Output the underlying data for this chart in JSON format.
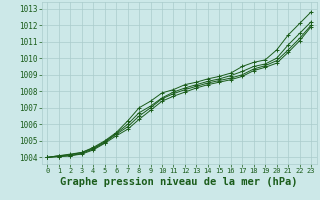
{
  "bg_color": "#cce8e8",
  "grid_color": "#aacccc",
  "line_color": "#1a5c1a",
  "marker": "+",
  "xlabel": "Graphe pression niveau de la mer (hPa)",
  "xlabel_fontsize": 7.5,
  "xlabel_color": "#1a5c1a",
  "ylabel_ticks": [
    1004,
    1005,
    1006,
    1007,
    1008,
    1009,
    1010,
    1011,
    1012,
    1013
  ],
  "xlim": [
    -0.5,
    23.5
  ],
  "ylim": [
    1003.6,
    1013.4
  ],
  "xticks": [
    0,
    1,
    2,
    3,
    4,
    5,
    6,
    7,
    8,
    9,
    10,
    11,
    12,
    13,
    14,
    15,
    16,
    17,
    18,
    19,
    20,
    21,
    22,
    23
  ],
  "series": [
    [
      1004.0,
      1004.1,
      1004.2,
      1004.3,
      1004.6,
      1005.0,
      1005.5,
      1006.2,
      1007.0,
      1007.4,
      1007.9,
      1008.1,
      1008.4,
      1008.55,
      1008.75,
      1008.9,
      1009.1,
      1009.5,
      1009.75,
      1009.9,
      1010.5,
      1011.4,
      1012.1,
      1012.8
    ],
    [
      1004.0,
      1004.1,
      1004.15,
      1004.3,
      1004.55,
      1004.95,
      1005.45,
      1006.0,
      1006.7,
      1007.1,
      1007.6,
      1007.95,
      1008.2,
      1008.4,
      1008.6,
      1008.75,
      1008.95,
      1009.2,
      1009.5,
      1009.65,
      1010.0,
      1010.8,
      1011.5,
      1012.2
    ],
    [
      1004.0,
      1004.05,
      1004.1,
      1004.25,
      1004.5,
      1004.9,
      1005.4,
      1005.85,
      1006.5,
      1007.0,
      1007.55,
      1007.85,
      1008.1,
      1008.3,
      1008.5,
      1008.65,
      1008.8,
      1009.0,
      1009.35,
      1009.55,
      1009.85,
      1010.5,
      1011.2,
      1012.0
    ],
    [
      1004.0,
      1004.05,
      1004.1,
      1004.2,
      1004.45,
      1004.85,
      1005.3,
      1005.7,
      1006.3,
      1006.85,
      1007.4,
      1007.7,
      1007.95,
      1008.2,
      1008.4,
      1008.55,
      1008.7,
      1008.9,
      1009.25,
      1009.45,
      1009.7,
      1010.35,
      1011.05,
      1011.9
    ]
  ]
}
